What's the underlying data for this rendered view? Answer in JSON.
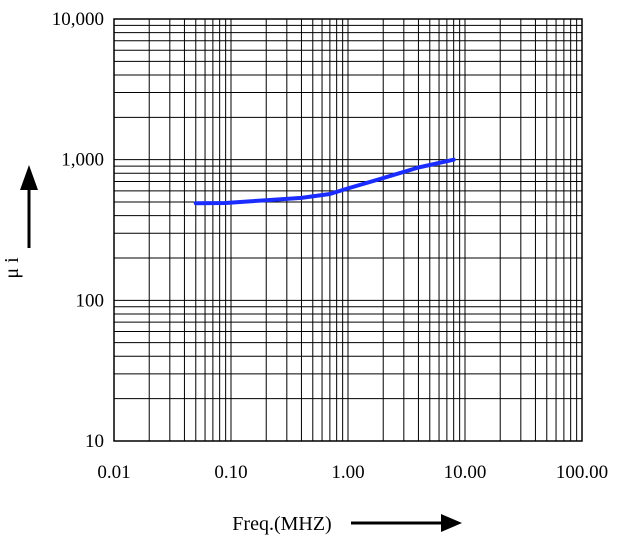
{
  "chart_data": {
    "type": "line",
    "title": "",
    "xlabel": "Freq.(MHZ)",
    "ylabel": "μ i",
    "x_scale": "log",
    "y_scale": "log",
    "xlim": [
      0.01,
      100
    ],
    "ylim": [
      10,
      10000
    ],
    "grid": true,
    "x_tick_labels": [
      "0.01",
      "0.10",
      "1.00",
      "10.00",
      "100.00"
    ],
    "y_tick_labels": [
      "10",
      "100",
      "1,000",
      "10,000"
    ],
    "series": [
      {
        "color": "#1a2cff",
        "x": [
          0.05,
          0.09,
          0.2,
          0.4,
          0.7,
          1.0,
          2.0,
          4.0,
          8.0
        ],
        "y": [
          490,
          492,
          515,
          535,
          570,
          625,
          740,
          880,
          1000
        ]
      }
    ]
  }
}
